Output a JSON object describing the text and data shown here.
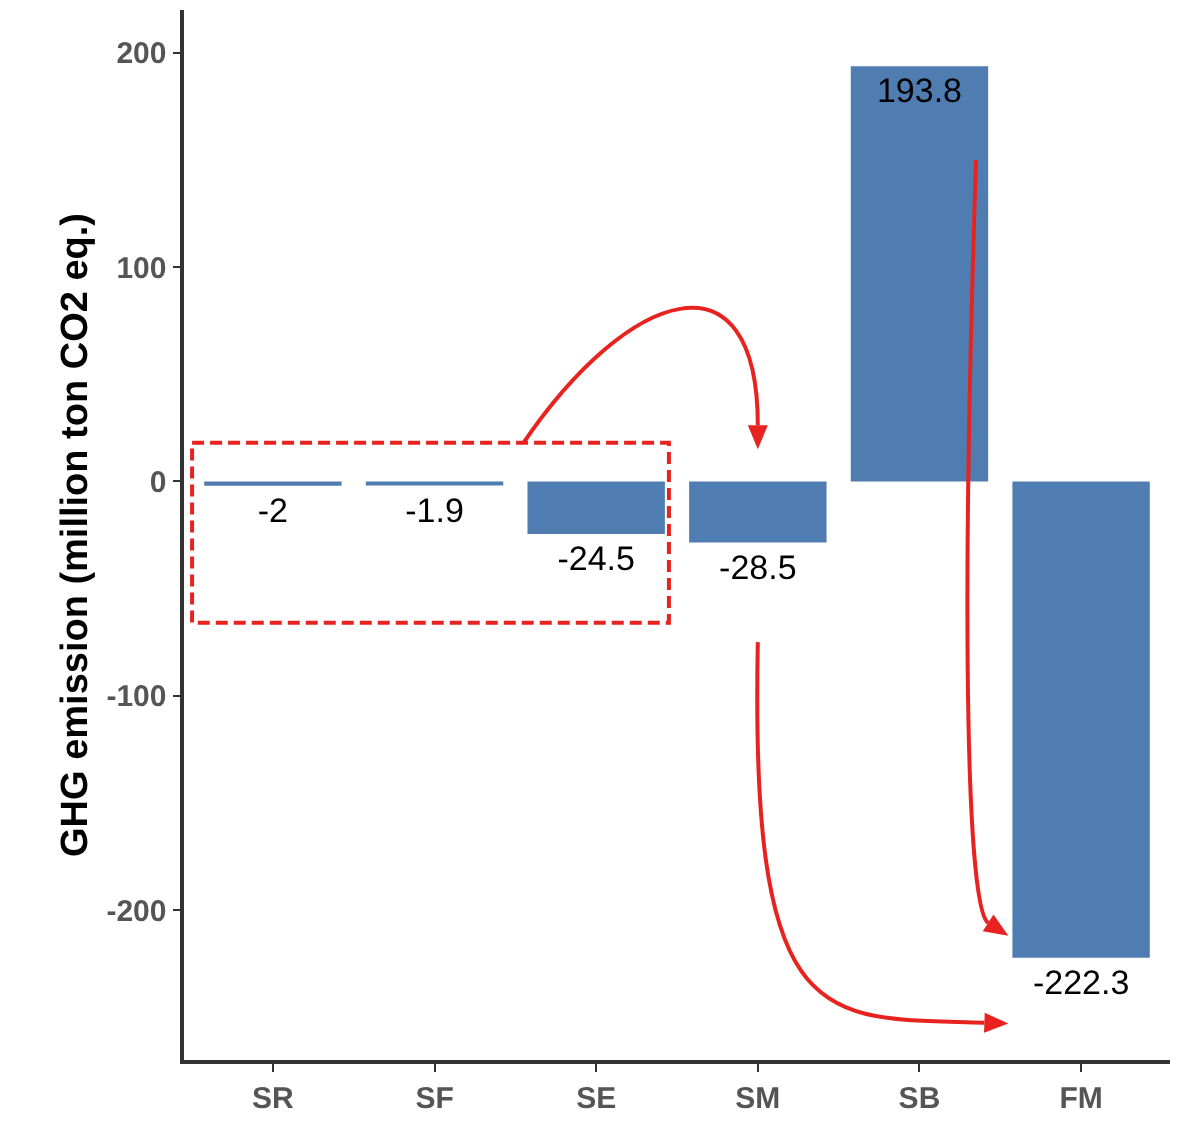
{
  "chart_data": {
    "type": "bar",
    "ylabel": "GHG emission (million ton CO2 eq.)",
    "categories": [
      "SR",
      "SF",
      "SE",
      "SM",
      "SB",
      "FM"
    ],
    "values": [
      -2,
      -1.9,
      -24.5,
      -28.5,
      193.8,
      -222.3
    ],
    "color": "#4f7db2",
    "ylim": [
      -270,
      220
    ],
    "yticks": [
      -200,
      -100,
      0,
      100,
      200
    ],
    "grid": false,
    "data_labels": true
  }
}
